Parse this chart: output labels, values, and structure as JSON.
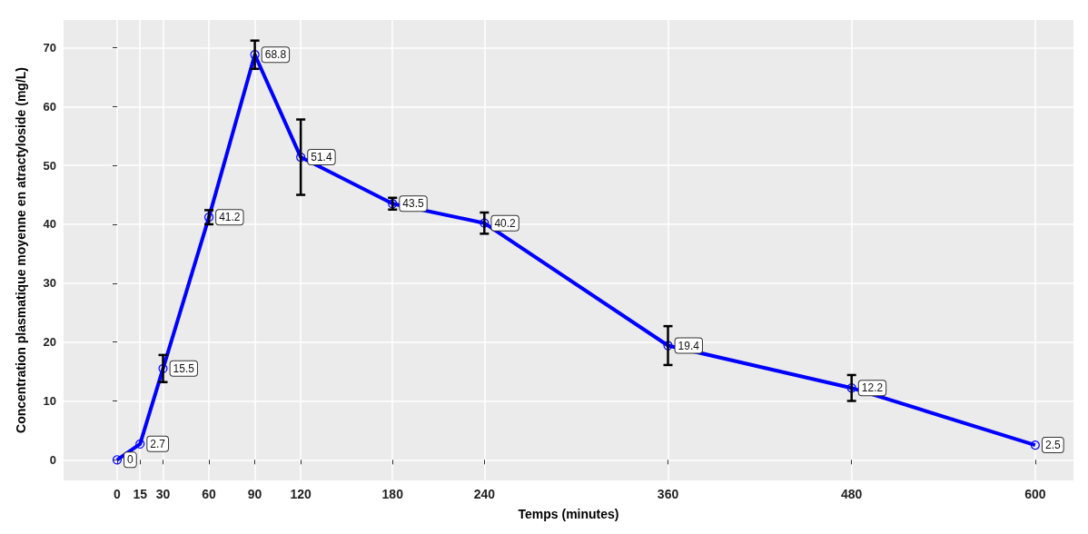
{
  "chart_data": {
    "type": "line",
    "xlabel": "Temps (minutes)",
    "ylabel": "Concentration plasmatique moyenne en atractyloside (mg/L)",
    "x": [
      0,
      15,
      30,
      60,
      90,
      120,
      180,
      240,
      360,
      480,
      600
    ],
    "series": [
      {
        "color": "#0000ff",
        "values": [
          0,
          2.7,
          15.5,
          41.2,
          68.8,
          51.4,
          43.5,
          40.2,
          19.4,
          12.2,
          2.5
        ],
        "errors": [
          null,
          null,
          2.3,
          1.2,
          2.4,
          6.4,
          1.0,
          1.8,
          3.3,
          2.2,
          null
        ]
      }
    ],
    "xlim": [
      -35,
      625
    ],
    "xticks": [
      0,
      15,
      30,
      60,
      90,
      120,
      180,
      240,
      360,
      480,
      600
    ],
    "ylim": [
      -3.5,
      74.7
    ],
    "yticks": [
      0,
      10,
      20,
      30,
      40,
      50,
      60,
      70
    ],
    "grid": true,
    "marker": "circle",
    "line_style": "solid",
    "data_labels": true
  }
}
